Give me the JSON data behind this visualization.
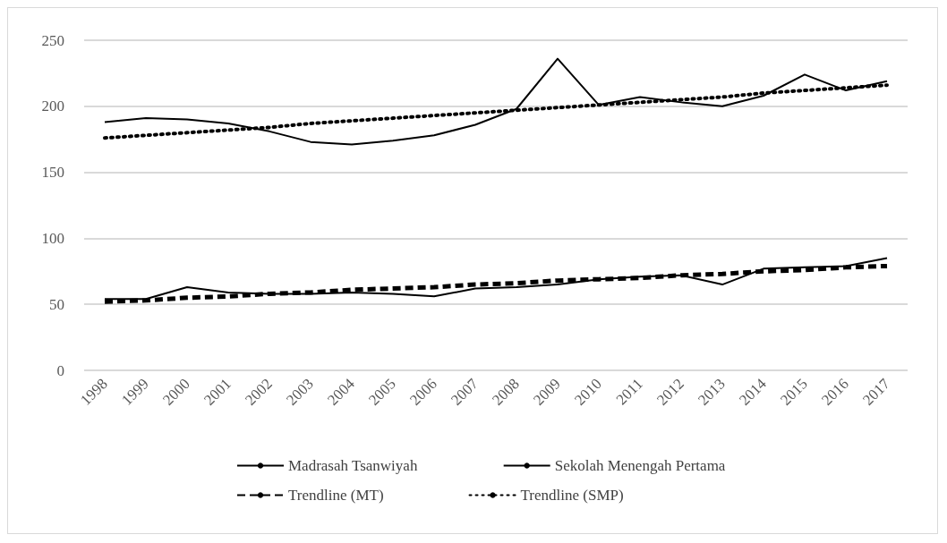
{
  "chart_data": {
    "type": "line",
    "categories": [
      "1998",
      "1999",
      "2000",
      "2001",
      "2002",
      "2003",
      "2004",
      "2005",
      "2006",
      "2007",
      "2008",
      "2009",
      "2010",
      "2011",
      "2012",
      "2013",
      "2014",
      "2015",
      "2016",
      "2017"
    ],
    "series": [
      {
        "name": "Madrasah Tsanwiyah",
        "color": "#000000",
        "line_style": "solid",
        "values": [
          54,
          54,
          63,
          59,
          58,
          58,
          59,
          58,
          56,
          62,
          63,
          65,
          69,
          71,
          72,
          65,
          77,
          78,
          79,
          85
        ]
      },
      {
        "name": "Sekolah Menengah Pertama",
        "color": "#000000",
        "line_style": "solid",
        "values": [
          188,
          191,
          190,
          187,
          181,
          173,
          171,
          174,
          178,
          186,
          198,
          236,
          201,
          207,
          203,
          200,
          208,
          224,
          212,
          219
        ]
      },
      {
        "name": "Trendline (MT)",
        "color": "#000000",
        "line_style": "dashed",
        "values": [
          52,
          53,
          55,
          56,
          58,
          59,
          61,
          62,
          63,
          65,
          66,
          68,
          69,
          70,
          72,
          73,
          75,
          76,
          78,
          79
        ]
      },
      {
        "name": "Trendline (SMP)",
        "color": "#000000",
        "line_style": "dotted",
        "values": [
          176,
          178,
          180,
          182,
          184,
          187,
          189,
          191,
          193,
          195,
          197,
          199,
          201,
          203,
          205,
          207,
          210,
          212,
          214,
          216
        ]
      }
    ],
    "ylim": [
      0,
      250
    ],
    "yticks": [
      0,
      50,
      100,
      150,
      200,
      250
    ],
    "grid": "y",
    "legend": "bottom",
    "marker": "none"
  }
}
